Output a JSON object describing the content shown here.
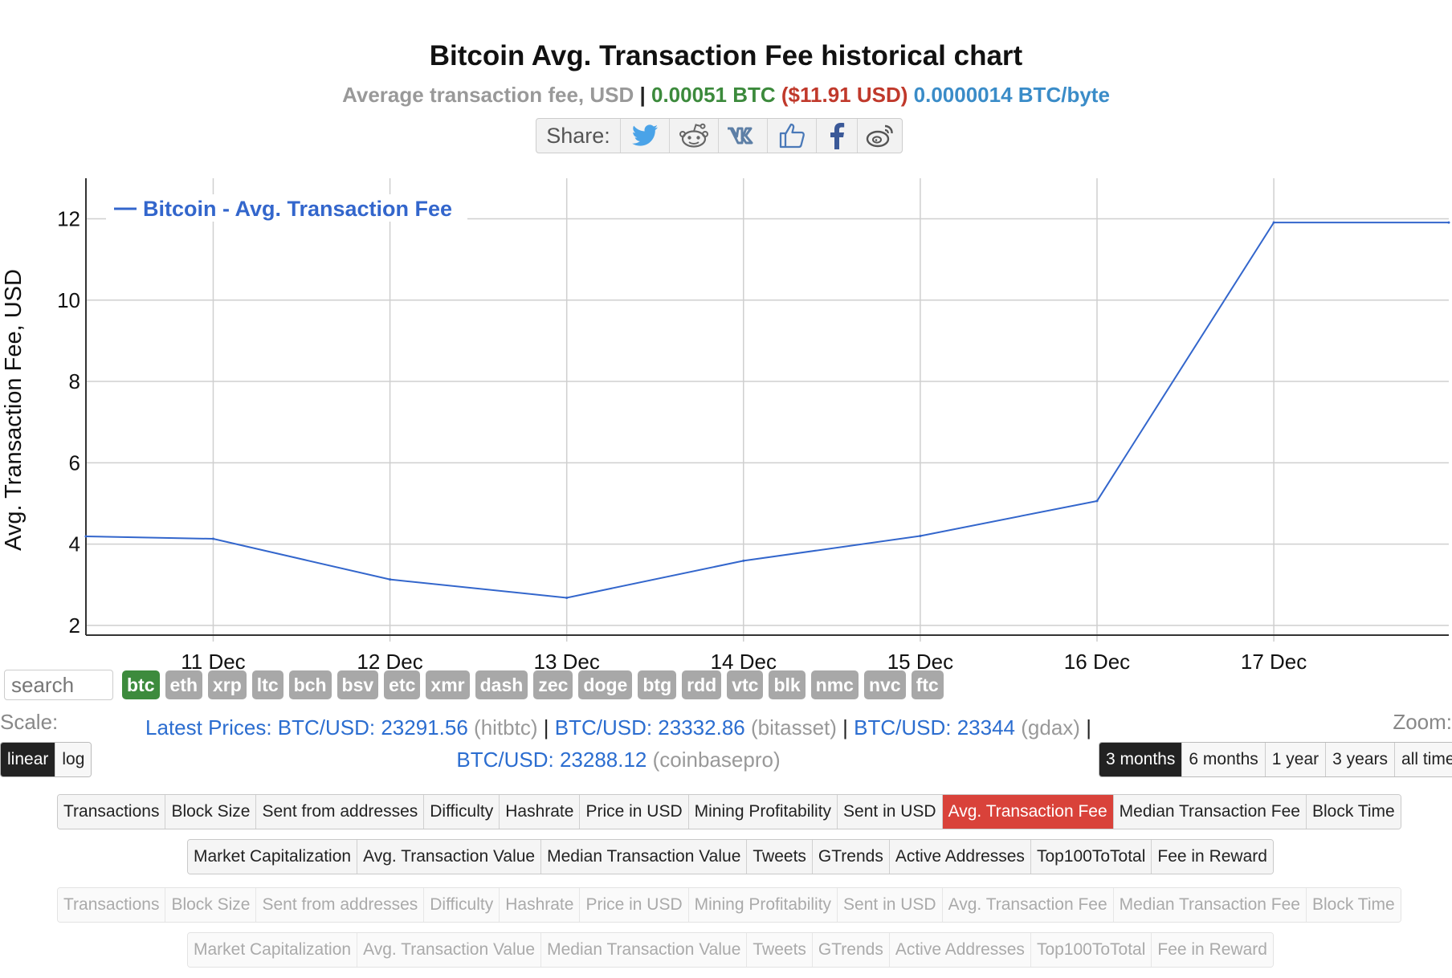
{
  "header": {
    "title": "Bitcoin Avg. Transaction Fee historical chart",
    "subtitle_label": "Average transaction fee, USD",
    "subtitle_sep": "|",
    "fee_btc": "0.00051 BTC",
    "fee_usd": "($11.91 USD)",
    "fee_per_byte": "0.0000014 BTC/byte"
  },
  "share": {
    "label": "Share:",
    "icons": [
      "twitter-icon",
      "reddit-icon",
      "vk-icon",
      "like-icon",
      "facebook-icon",
      "weibo-icon"
    ]
  },
  "chart_data": {
    "type": "line",
    "title": "",
    "ylabel": "Avg. Transaction Fee, USD",
    "xlabel": "",
    "ylim": [
      1.8,
      12.8
    ],
    "yticks": [
      2,
      4,
      6,
      8,
      10,
      12
    ],
    "xlim": [
      10.28,
      17.99
    ],
    "xticks": [
      {
        "label": "11 Dec",
        "x": 11
      },
      {
        "label": "12 Dec",
        "x": 12
      },
      {
        "label": "13 Dec",
        "x": 13
      },
      {
        "label": "14 Dec",
        "x": 14
      },
      {
        "label": "15 Dec",
        "x": 15
      },
      {
        "label": "16 Dec",
        "x": 16
      },
      {
        "label": "17 Dec",
        "x": 17
      }
    ],
    "grid": true,
    "legend": "top-left",
    "series": [
      {
        "name": "Bitcoin - Avg. Transaction Fee",
        "color": "#3366cc",
        "x": [
          10.28,
          11,
          12,
          13,
          14,
          15,
          16,
          17,
          17.99
        ],
        "y": [
          4.19,
          4.13,
          3.13,
          2.68,
          3.59,
          4.2,
          5.06,
          11.91,
          11.91
        ]
      }
    ]
  },
  "search": {
    "placeholder": "search"
  },
  "coins": [
    "btc",
    "eth",
    "xrp",
    "ltc",
    "bch",
    "bsv",
    "etc",
    "xmr",
    "dash",
    "zec",
    "doge",
    "btg",
    "rdd",
    "vtc",
    "blk",
    "nmc",
    "nvc",
    "ftc"
  ],
  "active_coin": "btc",
  "scale": {
    "label": "Scale:",
    "options": [
      "linear",
      "log"
    ],
    "active": "linear"
  },
  "zoom": {
    "label": "Zoom:",
    "options": [
      "3 months",
      "6 months",
      "1 year",
      "3 years",
      "all time"
    ],
    "active": "3 months"
  },
  "prices": {
    "label": "Latest Prices:",
    "items": [
      {
        "pair": "BTC/USD: 23291.56",
        "source": "(hitbtc)"
      },
      {
        "pair": "BTC/USD: 23332.86",
        "source": "(bitasset)"
      },
      {
        "pair": "BTC/USD: 23344",
        "source": "(gdax)"
      },
      {
        "pair": "BTC/USD: 23288.12",
        "source": "(coinbasepro)"
      }
    ],
    "sep": "|"
  },
  "metrics_row1": [
    "Transactions",
    "Block Size",
    "Sent from addresses",
    "Difficulty",
    "Hashrate",
    "Price in USD",
    "Mining Profitability",
    "Sent in USD",
    "Avg. Transaction Fee",
    "Median Transaction Fee",
    "Block Time"
  ],
  "metrics_row2": [
    "Market Capitalization",
    "Avg. Transaction Value",
    "Median Transaction Value",
    "Tweets",
    "GTrends",
    "Active Addresses",
    "Top100ToTotal",
    "Fee in Reward"
  ],
  "active_metric": "Avg. Transaction Fee"
}
